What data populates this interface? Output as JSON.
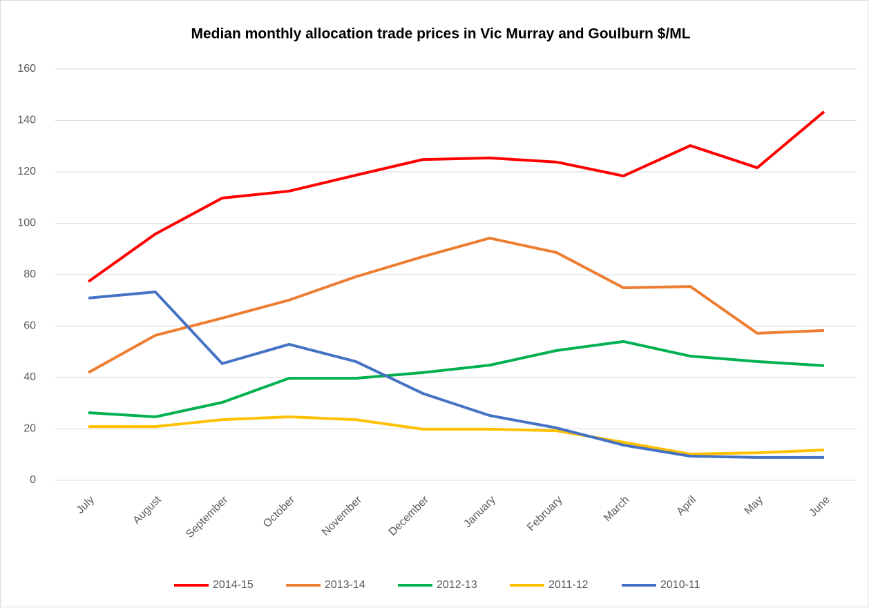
{
  "chart_data": {
    "type": "line",
    "title": "Median monthly allocation trade prices in Vic Murray and Goulburn $/ML",
    "categories": [
      "July",
      "August",
      "September",
      "October",
      "November",
      "December",
      "January",
      "February",
      "March",
      "April",
      "May",
      "June"
    ],
    "series": [
      {
        "name": "2014-15",
        "color": "#ff0000",
        "values": [
          77.3,
          95.8,
          109.8,
          112.5,
          118.7,
          124.8,
          125.4,
          123.8,
          118.4,
          130.2,
          121.6,
          143.4
        ]
      },
      {
        "name": "2013-14",
        "color": "#ed7d31",
        "values": [
          41.9,
          56.4,
          63.1,
          70.1,
          79.2,
          87,
          94.2,
          88.6,
          74.9,
          75.4,
          57.2,
          58.3
        ]
      },
      {
        "name": "2012-13",
        "color": "#00b050",
        "values": [
          26.3,
          24.7,
          30.3,
          39.7,
          39.7,
          41.9,
          44.8,
          50.5,
          54,
          48.3,
          46.2,
          44.6
        ]
      },
      {
        "name": "2011-12",
        "color": "#ffc000",
        "values": [
          20.9,
          20.9,
          23.6,
          24.7,
          23.6,
          19.9,
          19.9,
          19.3,
          14.8,
          10.2,
          10.7,
          11.8
        ]
      },
      {
        "name": "2010-11",
        "color": "#4472c4",
        "values": [
          70.9,
          73.3,
          45.4,
          52.9,
          46.2,
          33.8,
          25.2,
          20.4,
          13.7,
          9.4,
          8.9,
          8.9
        ]
      }
    ],
    "ylim": [
      0,
      160
    ],
    "yticks": [
      0,
      20,
      40,
      60,
      80,
      100,
      120,
      140,
      160
    ],
    "grid": true,
    "legend": "bottom"
  }
}
